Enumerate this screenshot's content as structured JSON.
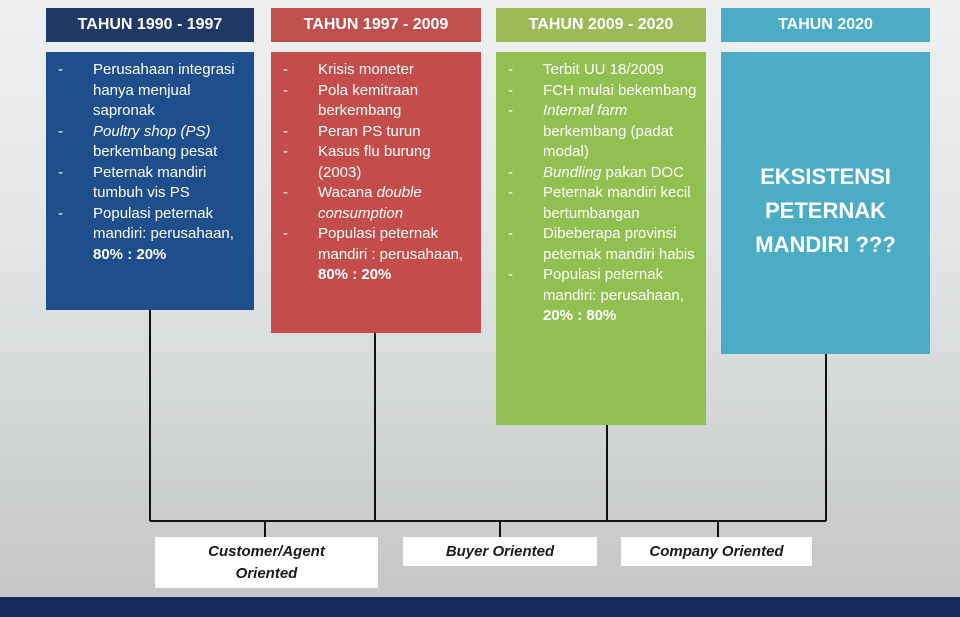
{
  "columns": [
    {
      "header": "TAHUN 1990 - 1997",
      "items": [
        [
          {
            "text": "Perusahaan integrasi hanya menjual sapronak"
          }
        ],
        [
          {
            "text": "Poultry shop (PS)",
            "style": "italic"
          },
          {
            "text": " berkembang pesat"
          }
        ],
        [
          {
            "text": "Peternak mandiri tumbuh vis PS"
          }
        ],
        [
          {
            "text": "Populasi peternak mandiri: perusahaan, "
          },
          {
            "text": "80% : 20%",
            "style": "bold"
          }
        ]
      ]
    },
    {
      "header": "TAHUN 1997 - 2009",
      "items": [
        [
          {
            "text": "Krisis moneter"
          }
        ],
        [
          {
            "text": "Pola kemitraan berkembang"
          }
        ],
        [
          {
            "text": "Peran PS turun"
          }
        ],
        [
          {
            "text": "Kasus flu burung (2003)"
          }
        ],
        [
          {
            "text": "Wacana "
          },
          {
            "text": "double consumption",
            "style": "italic"
          }
        ],
        [
          {
            "text": "Populasi peternak mandiri : perusahaan, "
          },
          {
            "text": "80% : 20%",
            "style": "bold"
          }
        ]
      ]
    },
    {
      "header": "TAHUN 2009 - 2020",
      "items": [
        [
          {
            "text": "Terbit UU 18/2009"
          }
        ],
        [
          {
            "text": "FCH mulai bekembang"
          }
        ],
        [
          {
            "text": "Internal farm",
            "style": "italic"
          },
          {
            "text": " berkembang (padat modal)"
          }
        ],
        [
          {
            "text": "Bundling",
            "style": "italic"
          },
          {
            "text": " pakan DOC"
          }
        ],
        [
          {
            "text": "Peternak mandiri kecil bertumbangan"
          }
        ],
        [
          {
            "text": "Dibeberapa provinsi peternak mandiri habis"
          }
        ],
        [
          {
            "text": "Populasi peternak mandiri: perusahaan, "
          },
          {
            "text": "20% : 80%",
            "style": "bold"
          }
        ]
      ]
    },
    {
      "header": "TAHUN 2020",
      "statement": "EKSISTENSI PETERNAK MANDIRI ???"
    }
  ],
  "orientations": [
    "Customer/Agent Oriented",
    "Buyer Oriented",
    "Company Oriented"
  ]
}
